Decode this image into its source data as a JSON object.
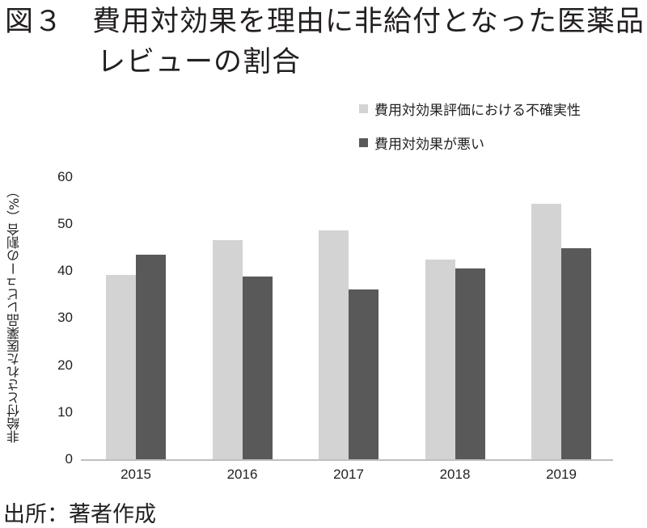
{
  "title": {
    "figure_number": "図３",
    "line1": "費用対効果を理由に非給付となった医薬品",
    "line2": "レビューの割合"
  },
  "source": "出所：著者作成",
  "colors": {
    "light": "#d3d3d3",
    "dark": "#5a595a",
    "axis": "#bfbfbf"
  },
  "chart_data": {
    "type": "bar",
    "title": "費用対効果を理由に非給付となった医薬品レビューの割合",
    "xlabel": "",
    "ylabel": "非給付とされた医薬品レビューの割合（%）",
    "ylim": [
      0,
      60
    ],
    "yticks": [
      0,
      10,
      20,
      30,
      40,
      50,
      60
    ],
    "grid": false,
    "legend_position": "top-right",
    "categories": [
      "2015",
      "2016",
      "2017",
      "2018",
      "2019"
    ],
    "series": [
      {
        "name": "費用対効果評価における不確実性",
        "color": "#d3d3d3",
        "values": [
          39.2,
          46.6,
          48.7,
          42.5,
          54.3
        ]
      },
      {
        "name": "費用対効果が悪い",
        "color": "#5a595a",
        "values": [
          43.4,
          38.9,
          36.0,
          40.5,
          44.8
        ]
      }
    ]
  }
}
